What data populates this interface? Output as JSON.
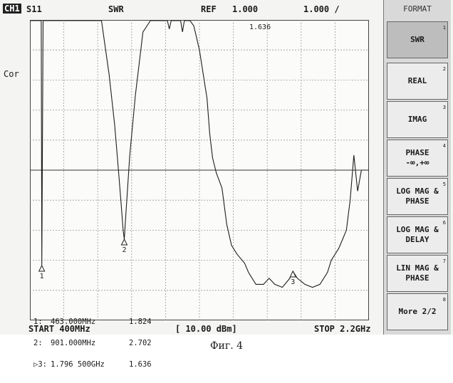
{
  "header": {
    "channel": "CH1",
    "param": "S11",
    "format": "SWR",
    "ref_label": "REF",
    "ref_value": "1.000",
    "scale": "1.000 /"
  },
  "side_label": "Cor",
  "active_marker_value": "1.636",
  "markers": {
    "lines": [
      {
        "label": "1:",
        "freq": "463.000MHz",
        "value": "1.824"
      },
      {
        "label": "2:",
        "freq": "901.000MHz",
        "value": "2.702"
      },
      {
        "label": "▷3:",
        "freq": "1.796 500GHz",
        "value": "1.636"
      }
    ],
    "marker_labels": [
      "1",
      "2",
      "3"
    ]
  },
  "footer": {
    "start": "START 400MHz",
    "power": "[ 10.00 dBm]",
    "stop": "STOP 2.2GHz"
  },
  "softkeys": {
    "title": "FORMAT",
    "items": [
      {
        "label": "SWR",
        "num": "1",
        "selected": true
      },
      {
        "label": "REAL",
        "num": "2",
        "selected": false
      },
      {
        "label": "IMAG",
        "num": "3",
        "selected": false
      },
      {
        "label": "PHASE\n-∞,+∞",
        "num": "4",
        "selected": false
      },
      {
        "label": "LOG MAG &\nPHASE",
        "num": "5",
        "selected": false
      },
      {
        "label": "LOG MAG &\nDELAY",
        "num": "6",
        "selected": false
      },
      {
        "label": "LIN MAG &\nPHASE",
        "num": "7",
        "selected": false
      },
      {
        "label": "More 2/2",
        "num": "8",
        "selected": false
      }
    ]
  },
  "caption": "Фиг. 4",
  "chart_data": {
    "type": "line",
    "title": "",
    "xlabel": "",
    "ylabel": "",
    "x_unit": "GHz",
    "xlim": [
      0.4,
      2.2
    ],
    "ylim": [
      0,
      10
    ],
    "reference_value": 1.0,
    "reference_division": 5,
    "grid": true,
    "series": [
      {
        "x": [
          0.4,
          0.44,
          0.445,
          0.45,
          0.455,
          0.46,
          0.463,
          0.47,
          0.476,
          0.48,
          0.5,
          0.54,
          0.58,
          0.62,
          0.66,
          0.7,
          0.74,
          0.78,
          0.82,
          0.85,
          0.87,
          0.885,
          0.895,
          0.901,
          0.91,
          0.93,
          0.96,
          1.0,
          1.04,
          1.08,
          1.11,
          1.13,
          1.14,
          1.15,
          1.16,
          1.17,
          1.18,
          1.19,
          1.2,
          1.21,
          1.22,
          1.23,
          1.25,
          1.27,
          1.3,
          1.32,
          1.33,
          1.34,
          1.355,
          1.37,
          1.39,
          1.42,
          1.445,
          1.47,
          1.5,
          1.54,
          1.56,
          1.6,
          1.64,
          1.67,
          1.7,
          1.74,
          1.78,
          1.796,
          1.82,
          1.86,
          1.9,
          1.94,
          1.98,
          2.0,
          2.02,
          2.04,
          2.06,
          2.08,
          2.1,
          2.12,
          2.14,
          2.16,
          2.18,
          2.2
        ],
        "y": [
          10.0,
          10.0,
          10.0,
          10.0,
          10.0,
          10.0,
          1.824,
          10.0,
          10.0,
          10.0,
          10.0,
          10.0,
          10.0,
          10.0,
          10.0,
          10.0,
          10.0,
          10.0,
          8.2,
          6.5,
          5.0,
          3.8,
          3.0,
          2.702,
          3.6,
          5.5,
          7.5,
          9.6,
          10.0,
          10.0,
          10.0,
          10.0,
          9.7,
          10.0,
          10.0,
          10.0,
          10.0,
          10.0,
          10.0,
          9.6,
          10.0,
          10.0,
          10.0,
          9.8,
          9.0,
          8.2,
          7.8,
          7.4,
          6.2,
          5.4,
          4.9,
          4.4,
          3.2,
          2.5,
          2.2,
          1.9,
          1.6,
          1.2,
          1.2,
          1.4,
          1.2,
          1.1,
          1.4,
          1.636,
          1.4,
          1.2,
          1.1,
          1.2,
          1.6,
          2.0,
          2.2,
          2.4,
          2.7,
          3.0,
          4.0,
          5.5,
          4.3,
          5.0,
          5.0,
          5.0
        ]
      }
    ],
    "markers": [
      {
        "n": 1,
        "x": 0.463,
        "y": 1.824
      },
      {
        "n": 2,
        "x": 0.901,
        "y": 2.702
      },
      {
        "n": 3,
        "x": 1.7965,
        "y": 1.636
      }
    ]
  }
}
